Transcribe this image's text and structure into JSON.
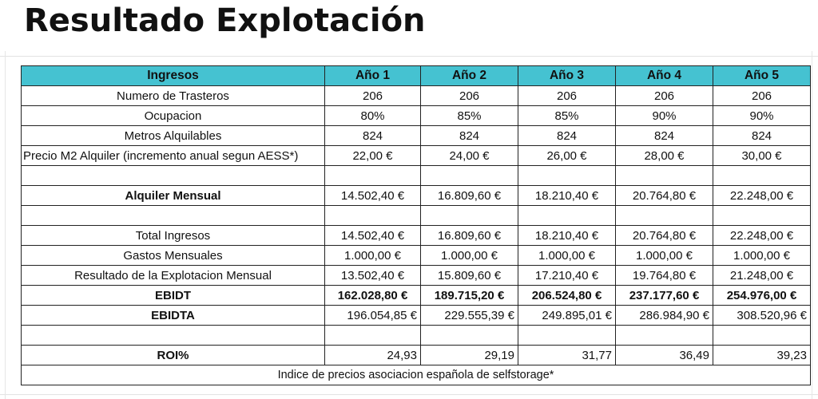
{
  "title": "Resultado Explotación",
  "table": {
    "header": [
      "Ingresos",
      "Año 1",
      "Año 2",
      "Año 3",
      "Año 4",
      "Año 5"
    ],
    "rows": [
      {
        "label": "Numero de Trasteros",
        "values": [
          "206",
          "206",
          "206",
          "206",
          "206"
        ]
      },
      {
        "label": "Ocupacion",
        "values": [
          "80%",
          "85%",
          "85%",
          "90%",
          "90%"
        ]
      },
      {
        "label": "Metros Alquilables",
        "values": [
          "824",
          "824",
          "824",
          "824",
          "824"
        ]
      },
      {
        "label": "Precio M2 Alquiler (incremento anual segun AESS*)",
        "values": [
          "22,00 €",
          "24,00 €",
          "26,00 €",
          "28,00 €",
          "30,00 €"
        ]
      },
      {
        "label": "",
        "values": [
          "",
          "",
          "",
          "",
          ""
        ]
      },
      {
        "label": "Alquiler Mensual",
        "values": [
          "14.502,40 €",
          "16.809,60 €",
          "18.210,40 €",
          "20.764,80 €",
          "22.248,00 €"
        ]
      },
      {
        "label": "",
        "values": [
          "",
          "",
          "",
          "",
          ""
        ]
      },
      {
        "label": "Total Ingresos",
        "values": [
          "14.502,40 €",
          "16.809,60 €",
          "18.210,40 €",
          "20.764,80 €",
          "22.248,00 €"
        ]
      },
      {
        "label": "Gastos Mensuales",
        "values": [
          "1.000,00 €",
          "1.000,00 €",
          "1.000,00 €",
          "1.000,00 €",
          "1.000,00 €"
        ]
      },
      {
        "label": "Resultado de la Explotacion Mensual",
        "values": [
          "13.502,40 €",
          "15.809,60 €",
          "17.210,40 €",
          "19.764,80 €",
          "21.248,00 €"
        ]
      },
      {
        "label": "EBIDT",
        "values": [
          "162.028,80 €",
          "189.715,20 €",
          "206.524,80 €",
          "237.177,60 €",
          "254.976,00 €"
        ]
      },
      {
        "label": "EBIDTA",
        "values": [
          "196.054,85 €",
          "229.555,39 €",
          "249.895,01 €",
          "286.984,90 €",
          "308.520,96 €"
        ]
      },
      {
        "label": "",
        "values": [
          "",
          "",
          "",
          "",
          ""
        ]
      },
      {
        "label": "ROI%",
        "values": [
          "24,93",
          "29,19",
          "31,77",
          "36,49",
          "39,23"
        ]
      }
    ],
    "footnote": "Indice de precios asociacion española de selfstorage*"
  }
}
